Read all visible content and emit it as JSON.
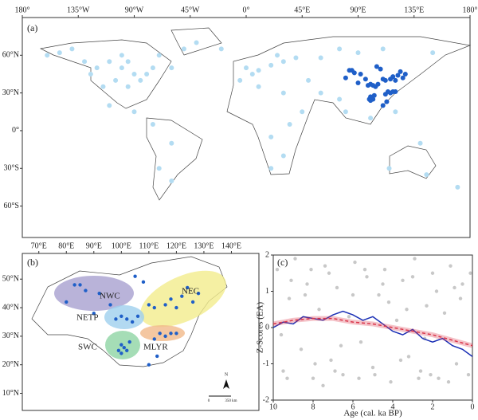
{
  "panel_a": {
    "label": "(a)",
    "lonlim": [
      -180,
      180
    ],
    "latlim": [
      -85,
      90
    ],
    "lonticks": [
      {
        "value": -180,
        "label": "180°"
      },
      {
        "value": -135,
        "label": "135°W"
      },
      {
        "value": -90,
        "label": "90°W"
      },
      {
        "value": -45,
        "label": "45°W"
      },
      {
        "value": 0,
        "label": "0°"
      },
      {
        "value": 45,
        "label": "45°E"
      },
      {
        "value": 90,
        "label": "90°E"
      },
      {
        "value": 135,
        "label": "135°E"
      },
      {
        "value": 180,
        "label": "180°"
      }
    ],
    "latticks": [
      {
        "value": 60,
        "label": "60°N"
      },
      {
        "value": 30,
        "label": "30°N"
      },
      {
        "value": 0,
        "label": "0°"
      },
      {
        "value": -30,
        "label": "30°S"
      },
      {
        "value": -60,
        "label": "60°S"
      }
    ],
    "site_color": "#b3dcf2",
    "sites_global": {
      "lon": [
        -120,
        -110,
        -100,
        -90,
        -80,
        -75,
        -105,
        -115,
        -95,
        -85,
        -130,
        -150,
        -160,
        -140,
        -100,
        -70,
        -60,
        -110,
        -90,
        -75,
        -60,
        -70,
        -60,
        -50,
        -40,
        -20,
        0,
        10,
        20,
        30,
        40,
        60,
        75,
        90,
        110,
        150,
        -5,
        10,
        30,
        35,
        20,
        30,
        20,
        45,
        60,
        75,
        80,
        100,
        120,
        140,
        145,
        115,
        170,
        -95,
        -125,
        5,
        25,
        50
      ],
      "lat": [
        50,
        55,
        50,
        45,
        45,
        50,
        40,
        35,
        35,
        40,
        55,
        62,
        60,
        65,
        60,
        60,
        50,
        20,
        15,
        5,
        -10,
        -30,
        -40,
        65,
        70,
        65,
        50,
        48,
        52,
        55,
        58,
        58,
        65,
        62,
        65,
        62,
        40,
        35,
        30,
        5,
        -5,
        -20,
        -30,
        15,
        30,
        25,
        15,
        10,
        15,
        -10,
        -35,
        -30,
        -45,
        55,
        45,
        45,
        60,
        40
      ]
    }
  },
  "panel_b": {
    "label": "(b)",
    "lonlim": [
      64,
      150
    ],
    "latlim": [
      4,
      59
    ],
    "lonticks": [
      {
        "value": 70,
        "label": "70°E"
      },
      {
        "value": 80,
        "label": "80°E"
      },
      {
        "value": 90,
        "label": "90°E"
      },
      {
        "value": 100,
        "label": "100°E"
      },
      {
        "value": 110,
        "label": "110°E"
      },
      {
        "value": 120,
        "label": "120°E"
      },
      {
        "value": 130,
        "label": "130°E"
      },
      {
        "value": 140,
        "label": "140°E"
      }
    ],
    "latticks": [
      {
        "value": 50,
        "label": "50°N"
      },
      {
        "value": 40,
        "label": "40°N"
      },
      {
        "value": 30,
        "label": "30°N"
      },
      {
        "value": 20,
        "label": "20°N"
      },
      {
        "value": 10,
        "label": "10°N"
      }
    ],
    "regions": [
      "NWC",
      "NEC",
      "NETP",
      "SWC",
      "MLYR"
    ],
    "north": "N",
    "scale_start": "0",
    "scale_end": "350 km",
    "site_color": "#1f5fc8",
    "sites_china": {
      "lon": [
        83,
        85,
        87,
        92,
        80,
        96,
        90,
        118,
        122,
        126,
        120,
        116,
        124,
        128,
        112,
        110,
        100,
        102,
        104,
        98,
        106,
        100,
        102,
        101,
        103,
        100,
        99,
        114,
        116,
        118,
        112,
        120,
        110,
        113,
        108,
        105
      ],
      "lat": [
        48,
        48,
        46,
        45,
        42,
        41,
        38,
        43,
        44,
        42,
        40,
        41,
        47,
        45,
        40,
        41,
        37,
        36,
        35,
        36,
        37,
        27,
        25,
        26,
        28,
        24,
        25,
        31,
        30,
        31,
        29,
        31,
        20,
        23,
        49,
        51
      ]
    }
  },
  "chart_data": {
    "type": "line",
    "label": "(c)",
    "xlabel": "Age (cal. ka BP)",
    "ylabel": "Z-Scores (EA)",
    "xlim": [
      10,
      0
    ],
    "ylim": [
      -2,
      2
    ],
    "xticks": [
      10,
      8,
      6,
      4,
      2,
      0
    ],
    "yticks": [
      -2,
      -1,
      0,
      1,
      2
    ],
    "scatter": {
      "color": "#c8c8c8",
      "x": [
        9.8,
        9.5,
        9.2,
        8.9,
        8.6,
        8.3,
        8.0,
        7.7,
        7.4,
        7.1,
        6.8,
        6.5,
        6.2,
        5.9,
        5.6,
        5.3,
        5.0,
        4.7,
        4.4,
        4.1,
        3.8,
        3.5,
        3.2,
        2.9,
        2.6,
        2.3,
        2.0,
        1.7,
        1.4,
        1.1,
        0.8,
        0.5,
        0.2,
        9.6,
        9.1,
        8.4,
        7.9,
        7.2,
        6.6,
        6.0,
        5.4,
        4.9,
        4.2,
        3.6,
        3.0,
        2.4,
        1.8,
        1.2,
        0.6,
        0.1,
        9.3,
        8.1,
        6.9,
        5.7,
        4.5,
        3.3,
        2.1,
        0.9,
        7.5,
        2.7
      ],
      "y": [
        1.6,
        -1.2,
        0.8,
        1.9,
        -0.6,
        1.2,
        -1.4,
        0.5,
        1.7,
        -0.9,
        1.1,
        -1.3,
        0.3,
        1.8,
        -0.4,
        1.4,
        -1.1,
        0.9,
        1.6,
        -1.5,
        0.2,
        1.3,
        -0.8,
        1.9,
        -1.2,
        0.6,
        1.5,
        -1.4,
        0.4,
        1.7,
        -1.0,
        1.2,
        -1.3,
        -0.2,
        1.3,
        0.9,
        -1.0,
        1.5,
        -0.5,
        0.9,
        1.6,
        -1.3,
        0.7,
        -0.9,
        1.4,
        -0.3,
        1.0,
        -1.5,
        0.8,
        1.5,
        -1.4,
        1.6,
        -1.2,
        -1.4,
        1.2,
        0.5,
        -1.3,
        1.1,
        -1.6,
        -1.4
      ]
    },
    "series": [
      {
        "color": "#1a2fb5",
        "style": "solid",
        "x": [
          10,
          9.5,
          9,
          8.5,
          8,
          7.5,
          7,
          6.5,
          6,
          5.5,
          5,
          4.5,
          4,
          3.5,
          3,
          2.5,
          2,
          1.5,
          1,
          0.5,
          0
        ],
        "values": [
          0.0,
          0.15,
          0.1,
          0.3,
          0.25,
          0.2,
          0.35,
          0.45,
          0.35,
          0.2,
          0.3,
          0.1,
          -0.1,
          -0.2,
          -0.05,
          -0.3,
          -0.4,
          -0.3,
          -0.5,
          -0.6,
          -0.8
        ]
      },
      {
        "color": "#d9344a",
        "style": "dashed",
        "x": [
          10,
          9,
          8,
          7,
          6,
          5,
          4,
          3,
          2,
          1,
          0
        ],
        "values": [
          0.1,
          0.2,
          0.25,
          0.25,
          0.15,
          0.1,
          0.0,
          -0.1,
          -0.2,
          -0.35,
          -0.5
        ]
      }
    ]
  }
}
